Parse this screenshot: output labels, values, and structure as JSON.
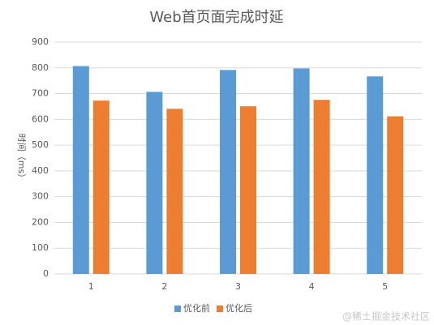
{
  "chart_data": {
    "type": "bar",
    "title": "Web首页面完成时延",
    "ylabel": "时间（ms）",
    "categories": [
      "1",
      "2",
      "3",
      "4",
      "5"
    ],
    "series": [
      {
        "name": "优化前",
        "color": "#5b9bd5",
        "values": [
          807,
          707,
          792,
          798,
          767
        ]
      },
      {
        "name": "优化后",
        "color": "#ed7d31",
        "values": [
          673,
          641,
          651,
          676,
          612
        ]
      }
    ],
    "ylim": [
      0,
      900
    ],
    "yticks": [
      0,
      100,
      200,
      300,
      400,
      500,
      600,
      700,
      800,
      900
    ],
    "grid": true,
    "legend": "bottom",
    "watermark": "@稀土掘金技术社区"
  }
}
